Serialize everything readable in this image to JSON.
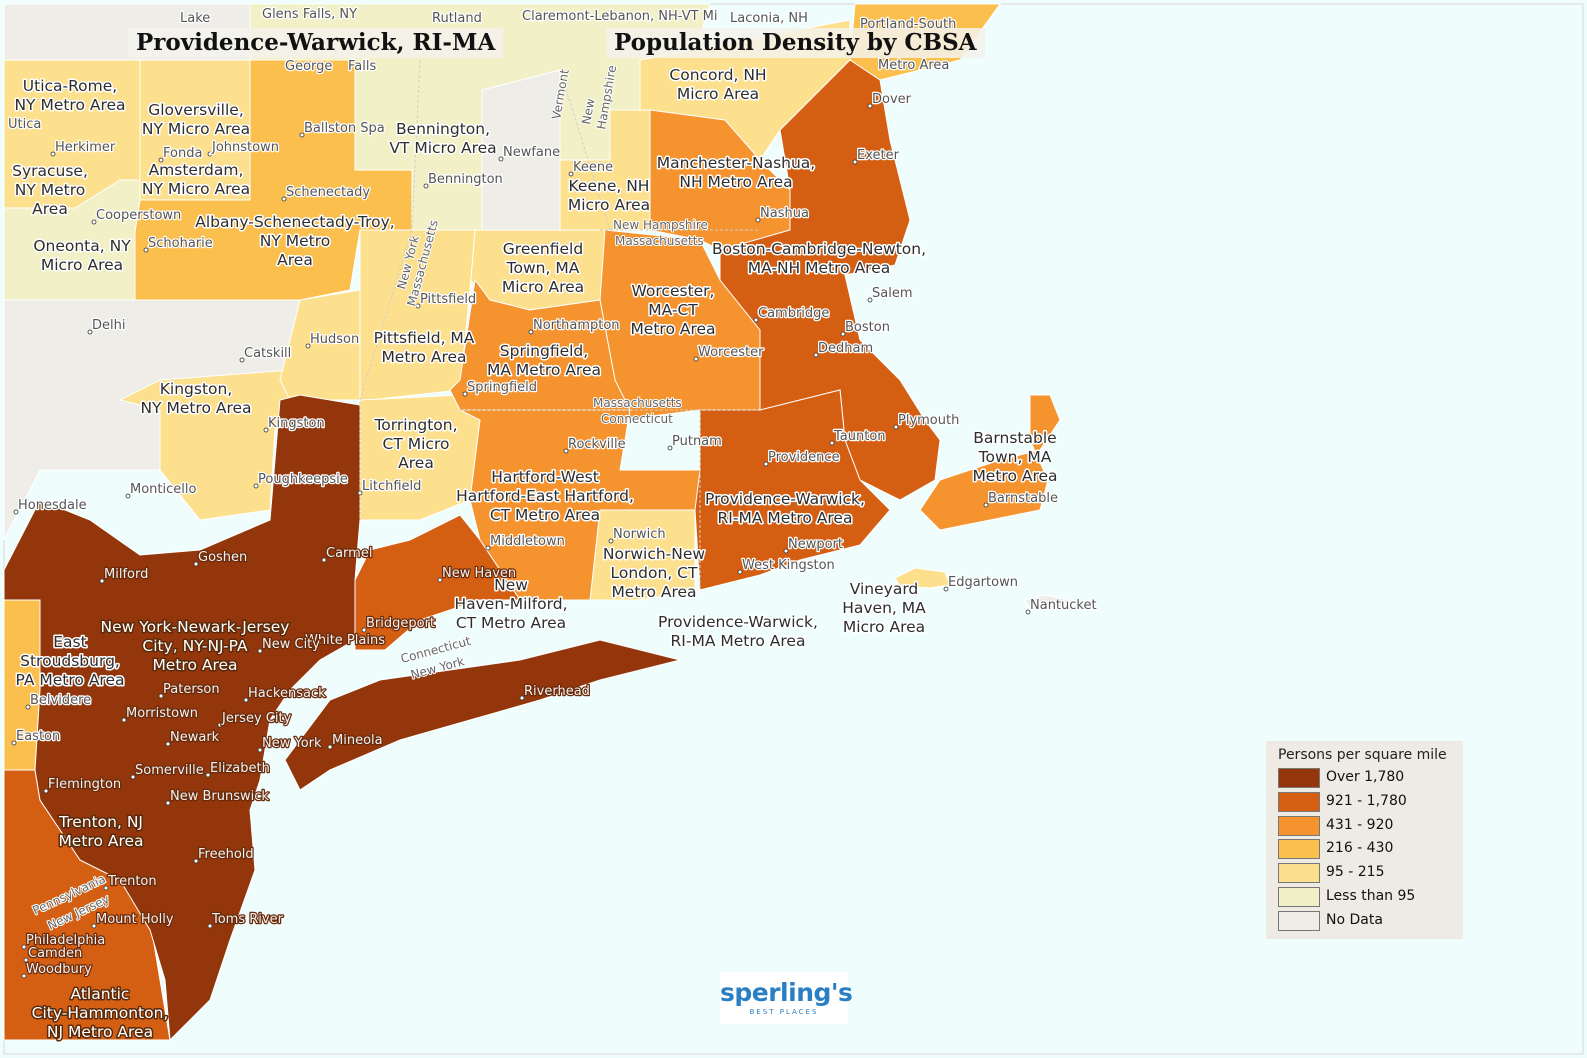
{
  "titles": {
    "left": "Providence-Warwick, RI-MA",
    "right": "Population Density by CBSA"
  },
  "colors": {
    "water": "#f0fdfd",
    "over_1780": "#93360b",
    "c921_1780": "#d45f12",
    "c431_920": "#f5932f",
    "c216_430": "#fbbf4e",
    "c95_215": "#fde08e",
    "less_95": "#f1f0c6",
    "no_data": "#efede8",
    "border": "#ffffff"
  },
  "legend": {
    "title": "Persons per square mile",
    "items": [
      {
        "label": "Over 1,780",
        "color": "#93360b"
      },
      {
        "label": "921 - 1,780",
        "color": "#d45f12"
      },
      {
        "label": "431 - 920",
        "color": "#f5932f"
      },
      {
        "label": "216 - 430",
        "color": "#fbbf4e"
      },
      {
        "label": "95 - 215",
        "color": "#fde08e"
      },
      {
        "label": "Less than 95",
        "color": "#f1f0c6"
      },
      {
        "label": "No Data",
        "color": "#efede8"
      }
    ]
  },
  "logo": {
    "name": "sperling's",
    "tagline": "BEST PLACES"
  },
  "regions": [
    "Utica-Rome, NY Metro Area",
    "Gloversville, NY Micro Area",
    "Amsterdam, NY Micro Area",
    "Syracuse, NY Metro Area",
    "Oneonta, NY Micro Area",
    "Albany-Schenectady-Troy, NY Metro Area",
    "Bennington, VT Micro Area",
    "Keene, NH Micro Area",
    "Concord, NH Micro Area",
    "Manchester-Nashua, NH Metro Area",
    "Boston-Cambridge-Newton, MA-NH Metro Area",
    "Greenfield Town, MA Micro Area",
    "Worcester, MA-CT Metro Area",
    "Pittsfield, MA Metro Area",
    "Springfield, MA Metro Area",
    "Kingston, NY Metro Area",
    "Torrington, CT Micro Area",
    "Hartford-West Hartford-East Hartford, CT Metro Area",
    "Providence-Warwick, RI-MA Metro Area",
    "Barnstable Town, MA Metro Area",
    "Norwich-New London, CT Metro Area",
    "New Haven-Milford, CT Metro Area",
    "Vineyard Haven, MA Micro Area",
    "New York-Newark-Jersey City, NY-NJ-PA Metro Area",
    "East Stroudsburg, PA Metro Area",
    "Trenton, NJ Metro Area",
    "Atlantic City-Hammonton, NJ Metro Area"
  ],
  "cities": [
    "Lake",
    "Glens Falls, NY",
    "Rutland",
    "Claremont-Lebanon, NH-VT Mi",
    "Laconia, NH",
    "Portland-South",
    "George",
    "Falls",
    "Utica",
    "Herkimer",
    "Fonda",
    "Johnstown",
    "Ballston Spa",
    "Schenectady",
    "Cooperstown",
    "Schoharie",
    "Newfane",
    "Bennington",
    "Keene",
    "Exeter",
    "Dover",
    "Nashua",
    "Pittsfield",
    "Northampton",
    "Springfield",
    "Worcester",
    "Salem",
    "Cambridge",
    "Boston",
    "Dedham",
    "Delhi",
    "Catskill",
    "Hudson",
    "Kingston",
    "Poughkeepsie",
    "Monticello",
    "Honesdale",
    "Litchfield",
    "Rockville",
    "Putnam",
    "Taunton",
    "Plymouth",
    "Providence",
    "Barnstable",
    "Middletown",
    "Norwich",
    "Newport",
    "West Kingston",
    "Edgartown",
    "Nantucket",
    "Goshen",
    "Carmel",
    "Milford",
    "New Haven",
    "Bridgeport",
    "White Plains",
    "New City",
    "Paterson",
    "Hackensack",
    "Riverhead",
    "Belvidere",
    "Morristown",
    "Jersey City",
    "New York",
    "Mineola",
    "Easton",
    "Newark",
    "Elizabeth",
    "Flemington",
    "Somerville",
    "New Brunswick",
    "Freehold",
    "Trenton",
    "Mount Holly",
    "Toms River",
    "Philadelphia",
    "Camden",
    "Woodbury",
    "Metro Area"
  ],
  "states": [
    "New York",
    "Vermont",
    "New Hampshire",
    "Massachusetts",
    "Connecticut"
  ]
}
